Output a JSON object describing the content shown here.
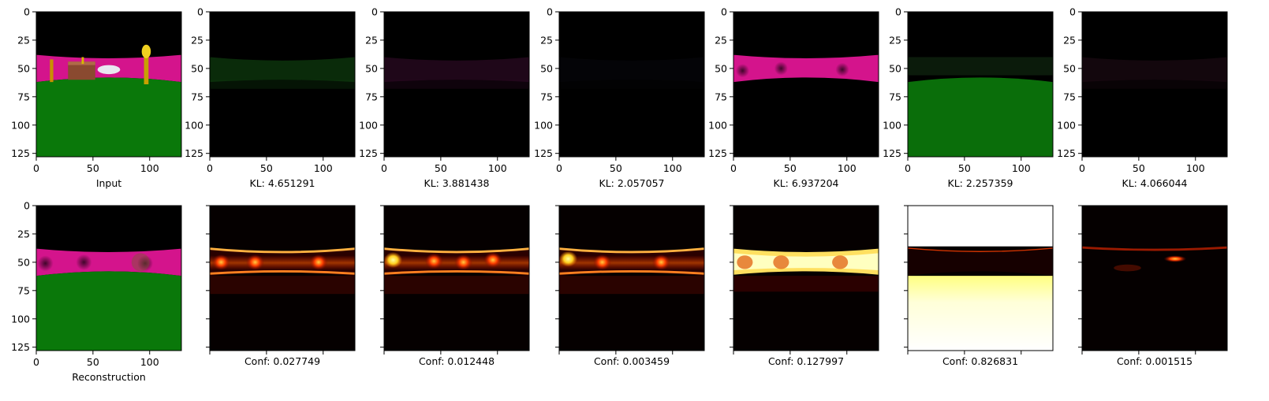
{
  "chart_data": {
    "type": "heatmap",
    "layout": "2 rows x 7 panels",
    "image_shape": [
      128,
      128
    ],
    "axes": {
      "x_ticks": [
        0,
        50,
        100
      ],
      "y_ticks": [
        0,
        25,
        50,
        75,
        100,
        125
      ],
      "xlim": [
        0,
        128
      ],
      "ylim": [
        128,
        0
      ]
    },
    "top_row": [
      {
        "caption": "Input",
        "content": "rgb-scene",
        "colors": [
          "#000000",
          "#d4148c",
          "#0a7a0a",
          "#8a4a30",
          "#d4b000"
        ]
      },
      {
        "caption": "KL: 4.651291",
        "kl": 4.651291,
        "content": "latent-slot",
        "tint": "#0e3a0e"
      },
      {
        "caption": "KL: 3.881438",
        "kl": 3.881438,
        "content": "latent-slot",
        "tint": "#2a0a22"
      },
      {
        "caption": "KL: 2.057057",
        "kl": 2.057057,
        "content": "latent-slot",
        "tint": "#06060a"
      },
      {
        "caption": "KL: 6.937204",
        "kl": 6.937204,
        "content": "latent-slot",
        "tint": "#d4148c"
      },
      {
        "caption": "KL: 2.257359",
        "kl": 2.257359,
        "content": "latent-slot",
        "tint": "#0a7a0a"
      },
      {
        "caption": "KL: 4.066044",
        "kl": 4.066044,
        "content": "latent-slot",
        "tint": "#1a0a12"
      }
    ],
    "bottom_row": [
      {
        "caption": "Reconstruction",
        "content": "rgb-scene"
      },
      {
        "caption": "Conf: 0.027749",
        "conf": 0.027749,
        "colormap": "hot"
      },
      {
        "caption": "Conf: 0.012448",
        "conf": 0.012448,
        "colormap": "hot"
      },
      {
        "caption": "Conf: 0.003459",
        "conf": 0.003459,
        "colormap": "hot"
      },
      {
        "caption": "Conf: 0.127997",
        "conf": 0.127997,
        "colormap": "hot"
      },
      {
        "caption": "Conf: 0.826831",
        "conf": 0.826831,
        "colormap": "hot"
      },
      {
        "caption": "Conf: 0.001515",
        "conf": 0.001515,
        "colormap": "hot"
      }
    ]
  }
}
